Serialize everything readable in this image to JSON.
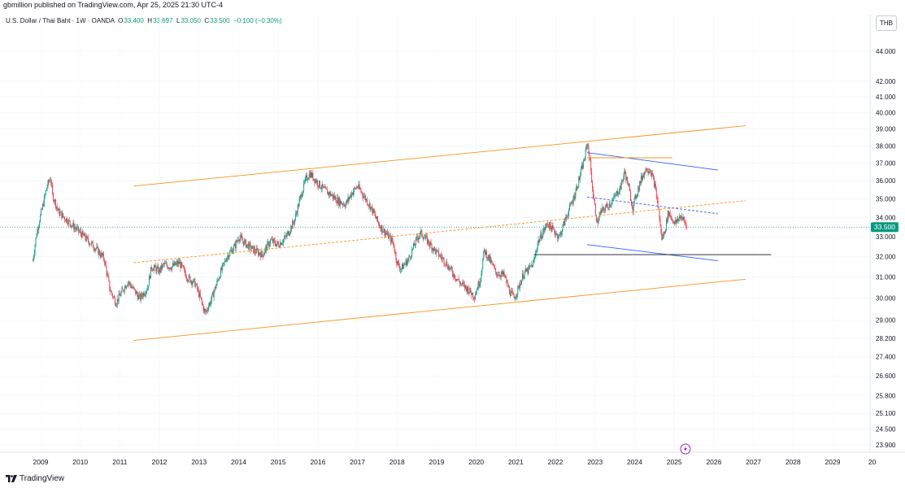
{
  "header": {
    "published": "gbmillion published on TradingView.com, Apr 25, 2025 21:30 UTC-4",
    "symbol": "U.S. Dollar / Thai Baht · 1W · OANDA",
    "o_label": "O",
    "o_value": "33.400",
    "h_label": "H",
    "h_value": "33.697",
    "l_label": "L",
    "l_value": "33.050",
    "c_label": "C",
    "c_value": "33.500",
    "change": "−0.100 (−0.30%)"
  },
  "currency_button": "THB",
  "footer": {
    "brand": "TradingView",
    "logo_icon": "tradingview-logo-icon"
  },
  "colors": {
    "up": "#089981",
    "down": "#f23645",
    "channel": "#f7931a",
    "wedge": "#2962ff",
    "support": "#131722"
  },
  "chart_data": {
    "type": "candlestick",
    "title": "U.S. Dollar / Thai Baht · 1W · OANDA",
    "xlabel": "",
    "ylabel": "",
    "y_scale": "log",
    "y_ticks": [
      "44.000",
      "42.000",
      "41.000",
      "40.000",
      "39.000",
      "38.000",
      "37.000",
      "36.000",
      "35.000",
      "34.000",
      "33.000",
      "32.000",
      "31.000",
      "30.000",
      "29.000",
      "28.200",
      "27.400",
      "26.600",
      "25.800",
      "25.100",
      "24.500",
      "23.900"
    ],
    "x_ticks": [
      "2009",
      "2010",
      "2011",
      "2012",
      "2013",
      "2014",
      "2015",
      "2016",
      "2017",
      "2018",
      "2019",
      "2020",
      "2021",
      "2022",
      "2023",
      "2024",
      "2025",
      "2026",
      "2027",
      "2028",
      "2029",
      "20"
    ],
    "last_price": 33.5,
    "last_price_label": "33.500",
    "price_path": [
      [
        2008.8,
        31.8
      ],
      [
        2008.9,
        33.2
      ],
      [
        2009.05,
        34.6
      ],
      [
        2009.15,
        35.6
      ],
      [
        2009.25,
        36.2
      ],
      [
        2009.3,
        35.2
      ],
      [
        2009.45,
        34.3
      ],
      [
        2009.6,
        34.0
      ],
      [
        2009.8,
        33.6
      ],
      [
        2010.0,
        33.2
      ],
      [
        2010.2,
        32.8
      ],
      [
        2010.4,
        32.4
      ],
      [
        2010.6,
        31.9
      ],
      [
        2010.75,
        30.4
      ],
      [
        2010.9,
        29.8
      ],
      [
        2011.05,
        30.3
      ],
      [
        2011.2,
        30.8
      ],
      [
        2011.35,
        30.4
      ],
      [
        2011.5,
        30.0
      ],
      [
        2011.7,
        30.5
      ],
      [
        2011.8,
        31.5
      ],
      [
        2012.0,
        31.3
      ],
      [
        2012.1,
        31.6
      ],
      [
        2012.3,
        31.5
      ],
      [
        2012.5,
        31.7
      ],
      [
        2012.7,
        31.0
      ],
      [
        2012.9,
        30.7
      ],
      [
        2013.05,
        29.9
      ],
      [
        2013.15,
        29.3
      ],
      [
        2013.3,
        29.9
      ],
      [
        2013.5,
        31.0
      ],
      [
        2013.7,
        32.0
      ],
      [
        2013.9,
        32.5
      ],
      [
        2014.0,
        33.0
      ],
      [
        2014.2,
        32.6
      ],
      [
        2014.4,
        32.3
      ],
      [
        2014.6,
        32.1
      ],
      [
        2014.8,
        32.8
      ],
      [
        2015.0,
        32.6
      ],
      [
        2015.2,
        33.0
      ],
      [
        2015.4,
        33.8
      ],
      [
        2015.55,
        35.0
      ],
      [
        2015.7,
        36.1
      ],
      [
        2015.8,
        36.4
      ],
      [
        2015.95,
        36.0
      ],
      [
        2016.15,
        35.5
      ],
      [
        2016.35,
        35.2
      ],
      [
        2016.5,
        34.9
      ],
      [
        2016.7,
        34.7
      ],
      [
        2016.85,
        35.3
      ],
      [
        2017.0,
        35.7
      ],
      [
        2017.15,
        35.2
      ],
      [
        2017.35,
        34.5
      ],
      [
        2017.55,
        33.6
      ],
      [
        2017.75,
        33.1
      ],
      [
        2017.9,
        32.7
      ],
      [
        2018.0,
        31.7
      ],
      [
        2018.1,
        31.4
      ],
      [
        2018.3,
        31.9
      ],
      [
        2018.5,
        32.9
      ],
      [
        2018.6,
        33.2
      ],
      [
        2018.8,
        32.7
      ],
      [
        2019.0,
        32.2
      ],
      [
        2019.2,
        31.8
      ],
      [
        2019.4,
        31.2
      ],
      [
        2019.6,
        30.7
      ],
      [
        2019.8,
        30.4
      ],
      [
        2019.95,
        30.1
      ],
      [
        2020.1,
        30.9
      ],
      [
        2020.2,
        32.3
      ],
      [
        2020.35,
        31.8
      ],
      [
        2020.5,
        31.2
      ],
      [
        2020.7,
        31.1
      ],
      [
        2020.85,
        30.3
      ],
      [
        2020.95,
        30.0
      ],
      [
        2021.05,
        30.4
      ],
      [
        2021.2,
        31.2
      ],
      [
        2021.3,
        31.3
      ],
      [
        2021.45,
        31.7
      ],
      [
        2021.55,
        32.7
      ],
      [
        2021.7,
        33.3
      ],
      [
        2021.8,
        33.7
      ],
      [
        2022.0,
        33.2
      ],
      [
        2022.1,
        33.0
      ],
      [
        2022.25,
        33.9
      ],
      [
        2022.45,
        35.0
      ],
      [
        2022.6,
        36.1
      ],
      [
        2022.75,
        37.4
      ],
      [
        2022.8,
        38.2
      ],
      [
        2022.87,
        37.2
      ],
      [
        2022.95,
        35.2
      ],
      [
        2023.05,
        33.7
      ],
      [
        2023.15,
        34.3
      ],
      [
        2023.3,
        34.6
      ],
      [
        2023.45,
        34.9
      ],
      [
        2023.55,
        35.3
      ],
      [
        2023.65,
        35.7
      ],
      [
        2023.75,
        36.5
      ],
      [
        2023.85,
        35.6
      ],
      [
        2023.95,
        34.5
      ],
      [
        2024.05,
        35.3
      ],
      [
        2024.2,
        36.3
      ],
      [
        2024.3,
        36.7
      ],
      [
        2024.4,
        36.6
      ],
      [
        2024.5,
        35.8
      ],
      [
        2024.6,
        34.5
      ],
      [
        2024.68,
        32.9
      ],
      [
        2024.75,
        33.2
      ],
      [
        2024.85,
        34.3
      ],
      [
        2024.95,
        33.9
      ],
      [
        2025.05,
        33.7
      ],
      [
        2025.15,
        34.1
      ],
      [
        2025.25,
        33.8
      ],
      [
        2025.32,
        33.5
      ]
    ],
    "drawings": [
      {
        "name": "channel-upper",
        "color": "#f7931a",
        "points": [
          [
            2011.35,
            35.7
          ],
          [
            2026.8,
            39.2
          ]
        ]
      },
      {
        "name": "channel-lower",
        "color": "#f7931a",
        "points": [
          [
            2011.35,
            28.1
          ],
          [
            2026.8,
            30.9
          ]
        ]
      },
      {
        "name": "channel-mid",
        "color": "#f7931a",
        "dash": true,
        "points": [
          [
            2011.35,
            31.7
          ],
          [
            2026.8,
            34.9
          ]
        ]
      },
      {
        "name": "wedge-upper",
        "color": "#2962ff",
        "points": [
          [
            2022.8,
            37.6
          ],
          [
            2026.1,
            36.6
          ]
        ]
      },
      {
        "name": "wedge-lower",
        "color": "#2962ff",
        "points": [
          [
            2022.8,
            32.6
          ],
          [
            2026.1,
            31.8
          ]
        ]
      },
      {
        "name": "wedge-mid",
        "color": "#2962ff",
        "dash": true,
        "points": [
          [
            2022.8,
            35.1
          ],
          [
            2026.1,
            34.2
          ]
        ]
      },
      {
        "name": "resistance-short",
        "color": "#f7931a",
        "points": [
          [
            2022.8,
            37.3
          ],
          [
            2024.95,
            37.3
          ]
        ]
      },
      {
        "name": "support-line",
        "color": "#131722",
        "points": [
          [
            2021.45,
            32.1
          ],
          [
            2027.45,
            32.1
          ]
        ]
      }
    ]
  }
}
